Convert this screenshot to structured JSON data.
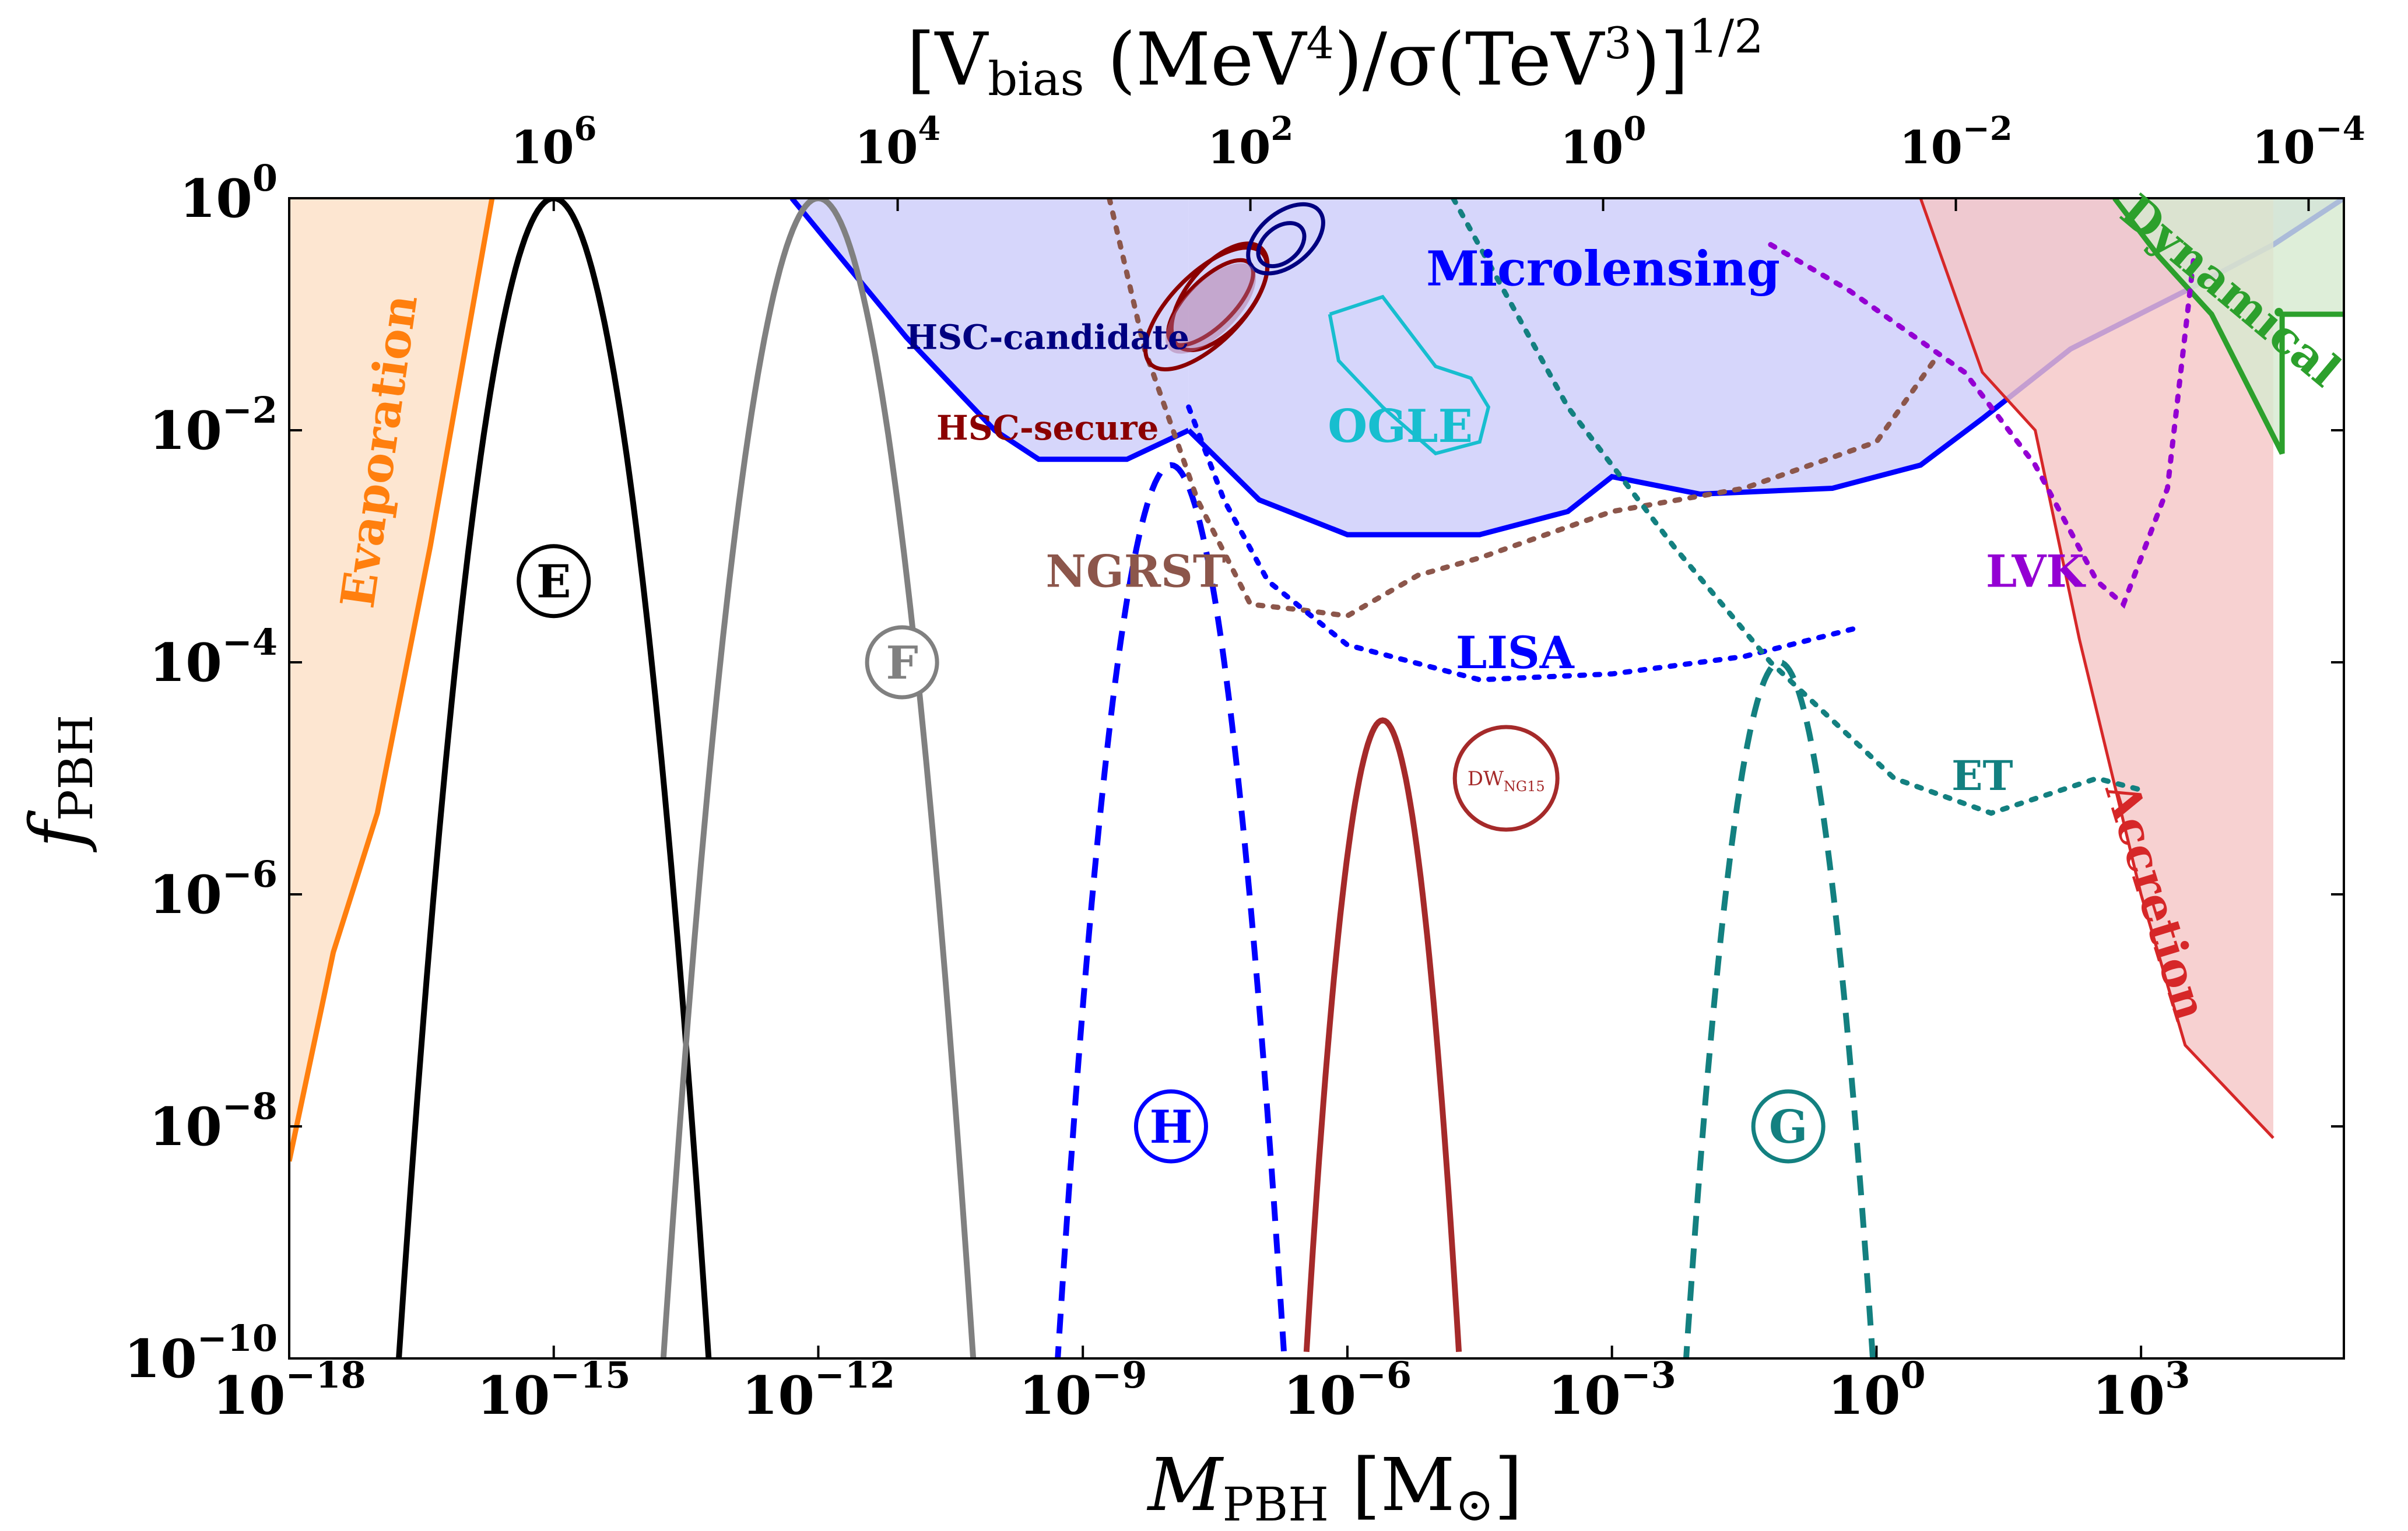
{
  "chart_data": {
    "type": "line",
    "xlabel": {
      "main": "M",
      "sub": "PBH",
      "rest": " [M",
      "sub2": "⊙",
      "close": "]"
    },
    "ylabel": {
      "main": "f",
      "sub": "PBH"
    },
    "toplabel": {
      "open": "[V",
      "sub": "bias",
      "mid1": " (MeV",
      "sup1": "4",
      "mid2": ")/σ(TeV",
      "sup2": "3",
      "close": ")]",
      "exp": "1/2"
    },
    "x_log_range": [
      -18,
      5.3
    ],
    "y_log_range": [
      -10,
      0
    ],
    "x_ticks": [
      {
        "exp": -18,
        "label": "10",
        "sup": "−18"
      },
      {
        "exp": -15,
        "label": "10",
        "sup": "−15"
      },
      {
        "exp": -12,
        "label": "10",
        "sup": "−12"
      },
      {
        "exp": -9,
        "label": "10",
        "sup": "−9"
      },
      {
        "exp": -6,
        "label": "10",
        "sup": "−6"
      },
      {
        "exp": -3,
        "label": "10",
        "sup": "−3"
      },
      {
        "exp": 0,
        "label": "10",
        "sup": "0"
      },
      {
        "exp": 3,
        "label": "10",
        "sup": "3"
      }
    ],
    "y_ticks": [
      {
        "exp": 0,
        "label": "10",
        "sup": "0"
      },
      {
        "exp": -2,
        "label": "10",
        "sup": "−2"
      },
      {
        "exp": -4,
        "label": "10",
        "sup": "−4"
      },
      {
        "exp": -6,
        "label": "10",
        "sup": "−6"
      },
      {
        "exp": -8,
        "label": "10",
        "sup": "−8"
      },
      {
        "exp": -10,
        "label": "10",
        "sup": "−10"
      }
    ],
    "top_ticks": [
      {
        "x_exp": -15,
        "label": "10",
        "sup": "6"
      },
      {
        "x_exp": -11.1,
        "label": "10",
        "sup": "4"
      },
      {
        "x_exp": -7.1,
        "label": "10",
        "sup": "2"
      },
      {
        "x_exp": -3.1,
        "label": "10",
        "sup": "0"
      },
      {
        "x_exp": 0.9,
        "label": "10",
        "sup": "−2"
      },
      {
        "x_exp": 4.9,
        "label": "10",
        "sup": "−4"
      }
    ],
    "regions": [
      {
        "name": "Evaporation",
        "color": "#ff7f0e",
        "fill": "#fde0c6",
        "points": [
          [
            -18,
            -8.3
          ],
          [
            -17.5,
            -6.5
          ],
          [
            -17,
            -5.3
          ],
          [
            -16.4,
            -3
          ],
          [
            -15.7,
            0
          ]
        ]
      },
      {
        "name": "Microlensing",
        "color": "#0000ff",
        "fill": "#ccccfa",
        "points": [
          [
            -12.3,
            0
          ],
          [
            -11,
            -1.2
          ],
          [
            -10,
            -2
          ],
          [
            -9.5,
            -2.25
          ],
          [
            -8.5,
            -2.25
          ],
          [
            -7.8,
            -2
          ]
        ]
      },
      {
        "name": "Microlensing",
        "color": "#0000ff",
        "fill": "#ccccfa",
        "points": [
          [
            -7.8,
            -2
          ],
          [
            -7,
            -2.6
          ],
          [
            -6,
            -2.9
          ],
          [
            -4.5,
            -2.9
          ],
          [
            -3.5,
            -2.7
          ],
          [
            -3,
            -2.4
          ],
          [
            -2,
            -2.55
          ],
          [
            -0.5,
            -2.5
          ],
          [
            0.5,
            -2.3
          ],
          [
            1.2,
            -1.9
          ],
          [
            2.2,
            -1.3
          ],
          [
            3.5,
            -0.8
          ],
          [
            4.5,
            -0.4
          ],
          [
            5.3,
            0
          ]
        ]
      },
      {
        "name": "Accretion",
        "color": "#d62728",
        "fill": "#f5c6c6",
        "points": [
          [
            0.5,
            0
          ],
          [
            1.2,
            -1.5
          ],
          [
            1.8,
            -2
          ],
          [
            2.3,
            -3.8
          ],
          [
            3,
            -6
          ],
          [
            3.5,
            -7.3
          ],
          [
            4.5,
            -8.1
          ]
        ]
      },
      {
        "name": "Dynamical",
        "color": "#2ca02c",
        "fill": "#d6ead0",
        "points": [
          [
            2.7,
            0
          ],
          [
            3.2,
            -0.5
          ],
          [
            3.8,
            -1
          ],
          [
            4.6,
            -2.2
          ],
          [
            4.6,
            -1
          ],
          [
            5.3,
            -1
          ]
        ]
      }
    ],
    "peaks": [
      {
        "marker": "E",
        "color": "#000000",
        "dash": "solid",
        "center": -15,
        "height": 0,
        "width": 1.8
      },
      {
        "marker": "F",
        "color": "#808080",
        "dash": "solid",
        "center": -12,
        "height": 0,
        "width": 1.8
      },
      {
        "marker": "H",
        "color": "#0000ff",
        "dash": "dashed",
        "center": -8,
        "height": -2.3,
        "width": 1.5
      },
      {
        "marker": "",
        "color": "#a52a2a",
        "dash": "solid",
        "center": -5.6,
        "height": -4.5,
        "width": 1.2
      },
      {
        "marker": "G",
        "color": "#138080",
        "dash": "dashed",
        "center": -1.1,
        "height": -4,
        "width": 1.4
      }
    ],
    "circle_labels": [
      "E",
      "F",
      "H",
      "G"
    ],
    "dw_label": {
      "main": "DW",
      "sub": "NG15"
    },
    "text_labels": {
      "evaporation": "Evaporation",
      "microlensing": "Microlensing",
      "ogle": "OGLE",
      "hsc_candidate": "HSC-candidate",
      "hsc_secure": "HSC-secure",
      "ngrst": "NGRST",
      "lisa": "LISA",
      "et": "ET",
      "lvk": "LVK",
      "accretion": "Accretion",
      "dynamical": "Dynamical"
    },
    "colors": {
      "evaporation": "#ff7f0e",
      "microlensing": "#0000ff",
      "ogle": "#17becf",
      "hsc_candidate": "#000080",
      "hsc_secure": "#8b0000",
      "ngrst": "#8c564b",
      "lisa": "#0000ff",
      "et": "#138080",
      "lvk": "#9400d3",
      "accretion": "#d62728",
      "dynamical": "#2ca02c"
    },
    "sensitivity_curves": [
      {
        "name": "NGRST",
        "color": "#8c564b",
        "points": [
          [
            -8.7,
            0
          ],
          [
            -8.3,
            -1.3
          ],
          [
            -7.7,
            -2.6
          ],
          [
            -7.1,
            -3.5
          ],
          [
            -6.5,
            -3.55
          ],
          [
            -6,
            -3.6
          ],
          [
            -5.2,
            -3.25
          ],
          [
            -4.5,
            -3.1
          ],
          [
            -3,
            -2.7
          ],
          [
            -1.5,
            -2.5
          ],
          [
            0,
            -2.1
          ],
          [
            0.7,
            -1.35
          ]
        ]
      },
      {
        "name": "LISA",
        "color": "#0000ff",
        "points": [
          [
            -7.8,
            -1.8
          ],
          [
            -7.4,
            -2.6
          ],
          [
            -6.9,
            -3.3
          ],
          [
            -6,
            -3.85
          ],
          [
            -4.5,
            -4.15
          ],
          [
            -3,
            -4.1
          ],
          [
            -1.5,
            -3.95
          ],
          [
            -0.2,
            -3.7
          ]
        ]
      },
      {
        "name": "ET",
        "color": "#138080",
        "points": [
          [
            -4.8,
            0
          ],
          [
            -3.5,
            -1.8
          ],
          [
            -2.3,
            -3
          ],
          [
            -1.2,
            -4
          ],
          [
            -0.5,
            -4.5
          ],
          [
            0.2,
            -5
          ],
          [
            1.3,
            -5.3
          ],
          [
            2.5,
            -5
          ],
          [
            3,
            -5.1
          ]
        ]
      },
      {
        "name": "LVK",
        "color": "#9400d3",
        "points": [
          [
            -1.2,
            -0.4
          ],
          [
            -0.3,
            -0.8
          ],
          [
            1,
            -1.5
          ],
          [
            1.8,
            -2.3
          ],
          [
            2.5,
            -3.3
          ],
          [
            2.8,
            -3.5
          ],
          [
            3.3,
            -2.5
          ],
          [
            3.6,
            -0.5
          ]
        ]
      }
    ]
  }
}
